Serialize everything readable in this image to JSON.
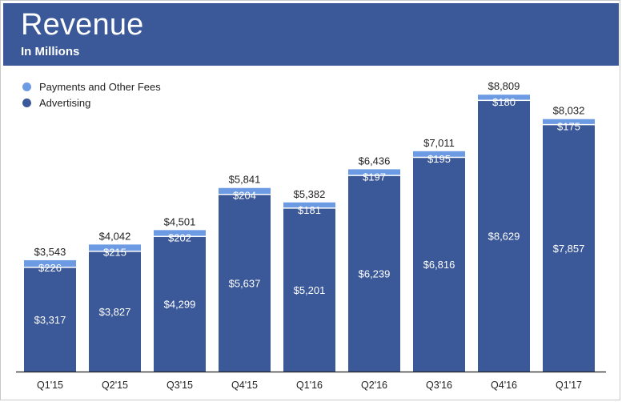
{
  "header": {
    "title": "Revenue",
    "subtitle": "In Millions"
  },
  "colors": {
    "header_bg": "#3b5998",
    "advertising": "#3b5998",
    "payments": "#6d9be3",
    "axis": "#222222"
  },
  "chart_data": {
    "type": "bar",
    "stacked": true,
    "title": "Revenue",
    "subtitle": "In Millions",
    "legend_position": "top-left",
    "categories": [
      "Q1'15",
      "Q2'15",
      "Q3'15",
      "Q4'15",
      "Q1'16",
      "Q2'16",
      "Q3'16",
      "Q4'16",
      "Q1'17"
    ],
    "series": [
      {
        "name": "Advertising",
        "values": [
          3317,
          3827,
          4299,
          5637,
          5201,
          6239,
          6816,
          8629,
          7857
        ],
        "labels": [
          "$3,317",
          "$3,827",
          "$4,299",
          "$5,637",
          "$5,201",
          "$6,239",
          "$6,816",
          "$8,629",
          "$7,857"
        ]
      },
      {
        "name": "Payments and Other Fees",
        "values": [
          226,
          215,
          202,
          204,
          181,
          197,
          195,
          180,
          175
        ],
        "labels": [
          "$226",
          "$215",
          "$202",
          "$204",
          "$181",
          "$197",
          "$195",
          "$180",
          "$175"
        ]
      }
    ],
    "totals": [
      3543,
      4042,
      4501,
      5841,
      5382,
      6436,
      7011,
      8809,
      8032
    ],
    "total_labels": [
      "$3,543",
      "$4,042",
      "$4,501",
      "$5,841",
      "$5,382",
      "$6,436",
      "$7,011",
      "$8,809",
      "$8,032"
    ],
    "ylim": [
      0,
      9000
    ],
    "grid": false
  }
}
